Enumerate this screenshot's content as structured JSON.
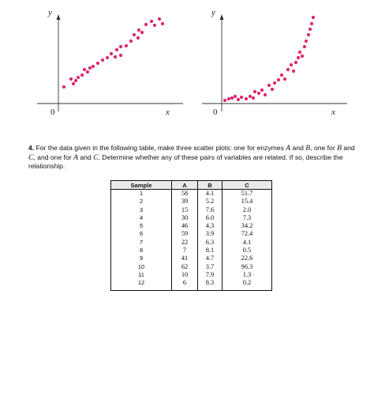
{
  "graphs": [
    {
      "y_label": "y",
      "x_label": "x",
      "origin_label": "0"
    },
    {
      "y_label": "y",
      "x_label": "x",
      "origin_label": "0"
    }
  ],
  "problem": {
    "number": "4.",
    "text_1": "For the data given in the following table, make three scatter plots: one for enzymes",
    "var_a": "A",
    "text_2": "and",
    "var_b": "B",
    "text_3": ", one for",
    "var_b2": "B",
    "text_4": "and",
    "var_c": "C",
    "text_5": ", and one for",
    "var_a2": "A",
    "text_6": "and",
    "var_c2": "C",
    "text_7": ". Determine whether any of these pairs of variables are related. If so, describe the relationship."
  },
  "table": {
    "headers": [
      "Sample",
      "A",
      "B",
      "C"
    ],
    "rows": [
      [
        "1",
        "58",
        "4.1",
        "51.7"
      ],
      [
        "2",
        "39",
        "5.2",
        "15.4"
      ],
      [
        "3",
        "15",
        "7.6",
        "2.0"
      ],
      [
        "4",
        "30",
        "6.0",
        "7.3"
      ],
      [
        "5",
        "46",
        "4.3",
        "34.2"
      ],
      [
        "6",
        "59",
        "3.9",
        "72.4"
      ],
      [
        "7",
        "22",
        "6.3",
        "4.1"
      ],
      [
        "8",
        "7",
        "8.1",
        "0.5"
      ],
      [
        "9",
        "41",
        "4.7",
        "22.6"
      ],
      [
        "10",
        "62",
        "3.7",
        "96.3"
      ],
      [
        "11",
        "10",
        "7.9",
        "1.3"
      ],
      [
        "12",
        "6",
        "8.3",
        "0.2"
      ]
    ]
  },
  "colors": {
    "dot": "#e0246e",
    "axis": "#333333"
  }
}
